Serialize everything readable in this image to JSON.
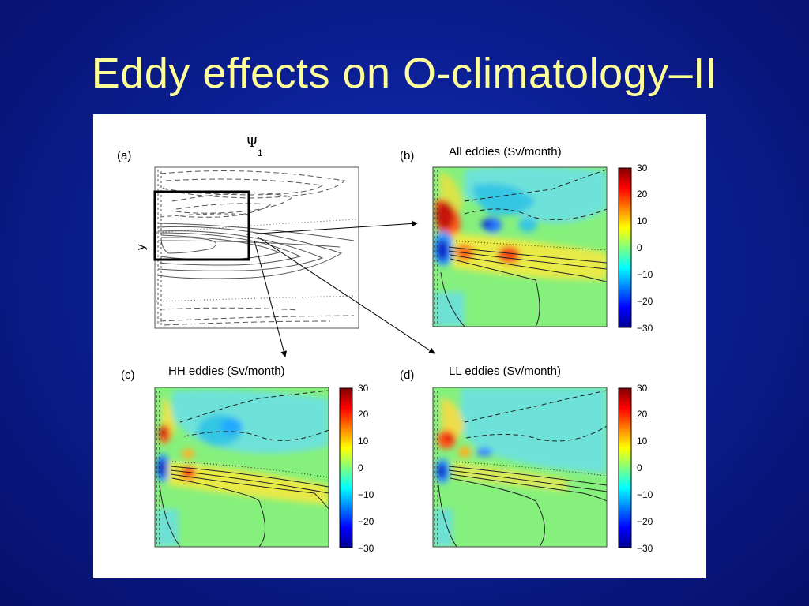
{
  "slide": {
    "title": "Eddy effects on O-climatology–II"
  },
  "colors": {
    "background": "#0c1f95",
    "title_text": "#ffff99",
    "figure_background": "#ffffff"
  },
  "chart_data": [
    {
      "type": "contour",
      "panel_label": "(a)",
      "title": "Ψ",
      "title_subscript": "1",
      "ylabel": "y",
      "annotations": [
        "inset box marks region shown in panels (b)-(d)"
      ]
    },
    {
      "type": "heatmap",
      "panel_label": "(b)",
      "title": "All eddies (Sv/month)",
      "colorbar": {
        "ticks": [
          30,
          20,
          10,
          0,
          -10,
          -20,
          -30
        ],
        "range": [
          -30,
          30
        ]
      }
    },
    {
      "type": "heatmap",
      "panel_label": "(c)",
      "title": "HH eddies (Sv/month)",
      "colorbar": {
        "ticks": [
          30,
          20,
          10,
          0,
          -10,
          -20,
          -30
        ],
        "range": [
          -30,
          30
        ]
      }
    },
    {
      "type": "heatmap",
      "panel_label": "(d)",
      "title": "LL eddies (Sv/month)",
      "colorbar": {
        "ticks": [
          30,
          20,
          10,
          0,
          -10,
          -20,
          -30
        ],
        "range": [
          -30,
          30
        ]
      }
    }
  ],
  "tick_labels": [
    "30",
    "20",
    "10",
    "0",
    "−10",
    "−20",
    "−30"
  ]
}
